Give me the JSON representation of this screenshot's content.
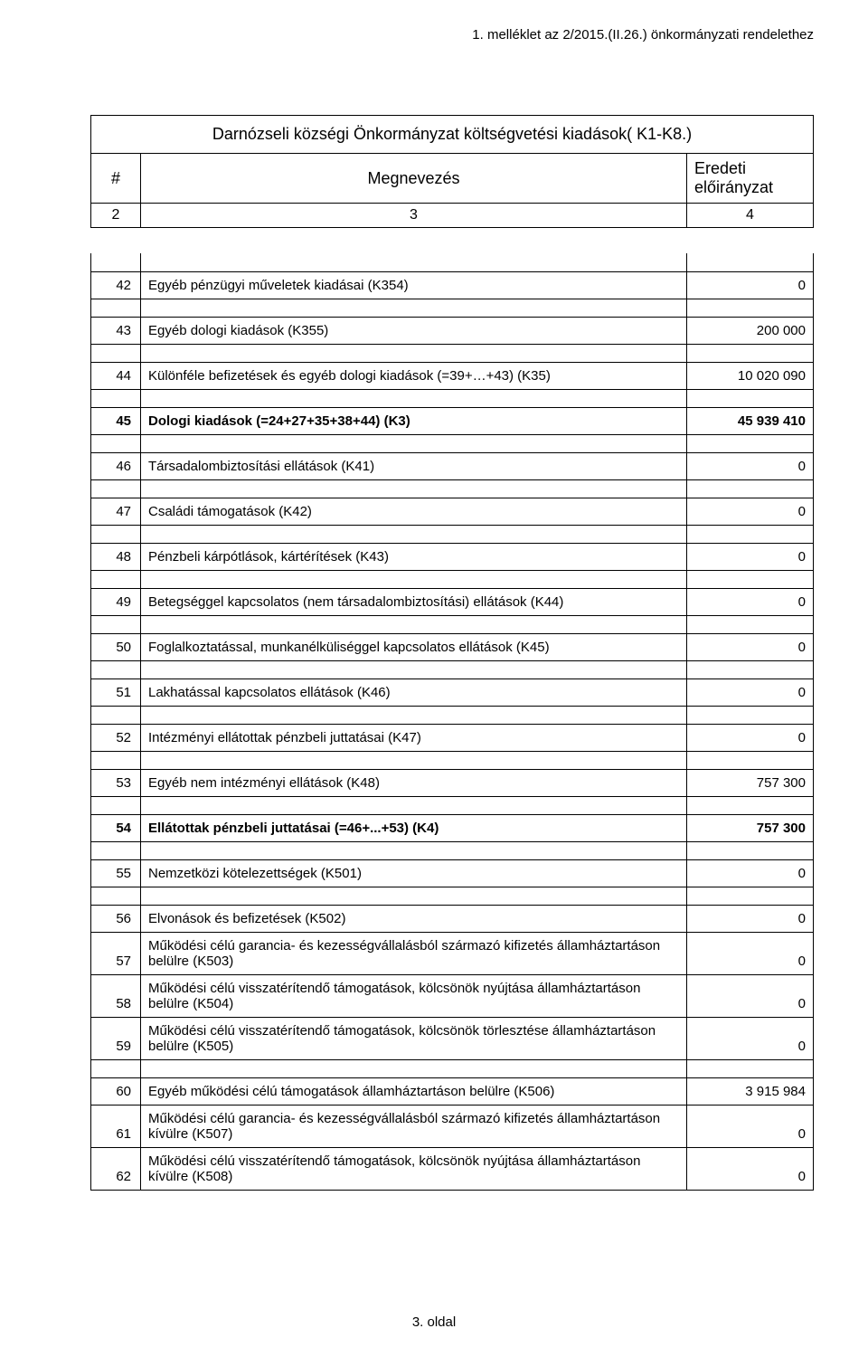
{
  "header": "1. melléklet az 2/2015.(II.26.) önkormányzati rendelethez",
  "title": "Darnózseli községi Önkormányzat költségvetési kiadások( K1-K8.)",
  "columns": {
    "c1": "#",
    "c2": "Megnevezés",
    "c3": "Eredeti előirányzat",
    "n1": "2",
    "n2": "3",
    "n3": "4"
  },
  "rows": [
    {
      "num": "42",
      "label": "Egyéb pénzügyi műveletek kiadásai (K354)",
      "value": "0",
      "bold": false
    },
    {
      "num": "43",
      "label": "Egyéb dologi kiadások (K355)",
      "value": "200 000",
      "bold": false
    },
    {
      "num": "44",
      "label": "Különféle befizetések és egyéb dologi kiadások (=39+…+43) (K35)",
      "value": "10 020 090",
      "bold": false
    },
    {
      "num": "45",
      "label": "Dologi kiadások (=24+27+35+38+44) (K3)",
      "value": "45 939 410",
      "bold": true
    },
    {
      "num": "46",
      "label": "Társadalombiztosítási ellátások (K41)",
      "value": "0",
      "bold": false
    },
    {
      "num": "47",
      "label": "Családi támogatások (K42)",
      "value": "0",
      "bold": false
    },
    {
      "num": "48",
      "label": "Pénzbeli kárpótlások, kártérítések (K43)",
      "value": "0",
      "bold": false
    },
    {
      "num": "49",
      "label": "Betegséggel kapcsolatos (nem társadalombiztosítási) ellátások (K44)",
      "value": "0",
      "bold": false
    },
    {
      "num": "50",
      "label": "Foglalkoztatással, munkanélküliséggel kapcsolatos ellátások (K45)",
      "value": "0",
      "bold": false
    },
    {
      "num": "51",
      "label": "Lakhatással kapcsolatos ellátások (K46)",
      "value": "0",
      "bold": false
    },
    {
      "num": "52",
      "label": "Intézményi ellátottak pénzbeli juttatásai (K47)",
      "value": "0",
      "bold": false
    },
    {
      "num": "53",
      "label": "Egyéb nem intézményi ellátások (K48)",
      "value": "757 300",
      "bold": false
    },
    {
      "num": "54",
      "label": "Ellátottak pénzbeli juttatásai (=46+...+53) (K4)",
      "value": "757 300",
      "bold": true
    },
    {
      "num": "55",
      "label": "Nemzetközi kötelezettségek (K501)",
      "value": "0",
      "bold": false
    },
    {
      "num": "56",
      "label": "Elvonások és befizetések (K502)",
      "value": "0",
      "bold": false
    },
    {
      "num": "57",
      "label": "Működési célú garancia- és kezességvállalásból származó kifizetés államháztartáson belülre (K503)",
      "value": "0",
      "bold": false,
      "nospacer": true
    },
    {
      "num": "58",
      "label": "Működési célú visszatérítendő támogatások, kölcsönök nyújtása államháztartáson belülre (K504)",
      "value": "0",
      "bold": false,
      "nospacer": true
    },
    {
      "num": "59",
      "label": "Működési célú visszatérítendő támogatások, kölcsönök törlesztése államháztartáson belülre (K505)",
      "value": "0",
      "bold": false,
      "nospacer": true
    },
    {
      "num": "60",
      "label": "Egyéb működési célú támogatások államháztartáson belülre (K506)",
      "value": "3 915 984",
      "bold": false
    },
    {
      "num": "61",
      "label": "Működési célú garancia- és kezességvállalásból származó kifizetés államháztartáson kívülre (K507)",
      "value": "0",
      "bold": false,
      "nospacer": true
    },
    {
      "num": "62",
      "label": "Működési célú visszatérítendő támogatások, kölcsönök nyújtása államháztartáson kívülre (K508)",
      "value": "0",
      "bold": false,
      "nospacer": true
    }
  ],
  "footer": "3. oldal"
}
